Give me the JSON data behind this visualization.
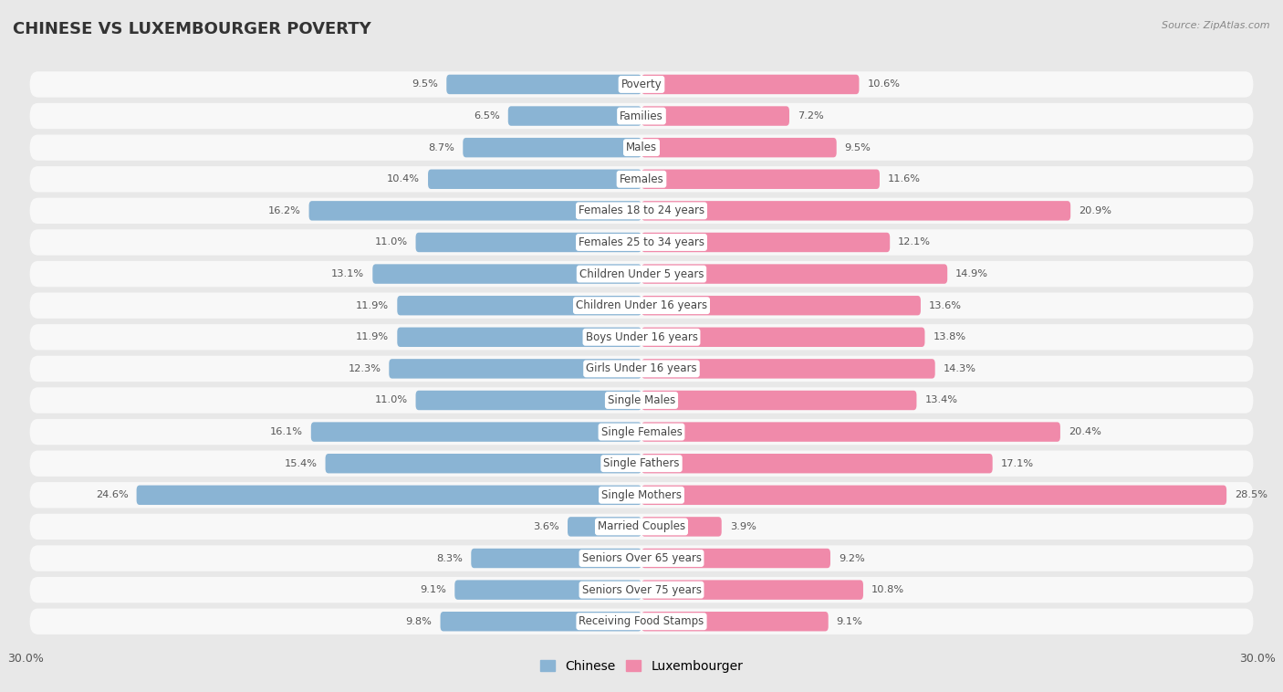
{
  "title": "CHINESE VS LUXEMBOURGER POVERTY",
  "source": "Source: ZipAtlas.com",
  "categories": [
    "Poverty",
    "Families",
    "Males",
    "Females",
    "Females 18 to 24 years",
    "Females 25 to 34 years",
    "Children Under 5 years",
    "Children Under 16 years",
    "Boys Under 16 years",
    "Girls Under 16 years",
    "Single Males",
    "Single Females",
    "Single Fathers",
    "Single Mothers",
    "Married Couples",
    "Seniors Over 65 years",
    "Seniors Over 75 years",
    "Receiving Food Stamps"
  ],
  "chinese": [
    9.5,
    6.5,
    8.7,
    10.4,
    16.2,
    11.0,
    13.1,
    11.9,
    11.9,
    12.3,
    11.0,
    16.1,
    15.4,
    24.6,
    3.6,
    8.3,
    9.1,
    9.8
  ],
  "luxembourger": [
    10.6,
    7.2,
    9.5,
    11.6,
    20.9,
    12.1,
    14.9,
    13.6,
    13.8,
    14.3,
    13.4,
    20.4,
    17.1,
    28.5,
    3.9,
    9.2,
    10.8,
    9.1
  ],
  "chinese_color": "#8ab4d4",
  "luxembourger_color": "#f08aaa",
  "background_color": "#e8e8e8",
  "row_bg_color": "#f8f8f8",
  "axis_max": 30.0,
  "bar_height": 0.62,
  "title_fontsize": 13,
  "label_fontsize": 8.5,
  "value_fontsize": 8.2,
  "tick_fontsize": 9,
  "legend_chinese": "Chinese",
  "legend_luxembourger": "Luxembourger"
}
